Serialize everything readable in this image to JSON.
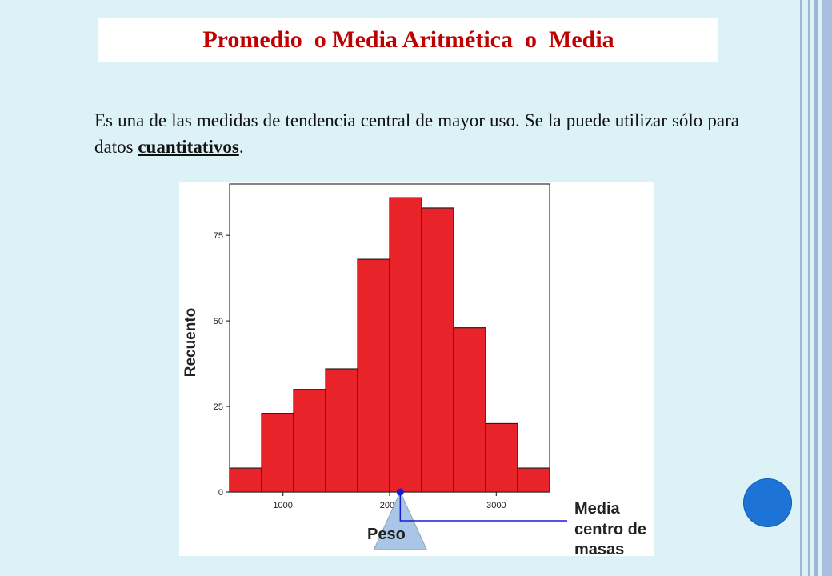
{
  "slide": {
    "title": "Promedio  o Media Aritmética  o  Media",
    "body_text_before": "Es una de las medidas de tendencia central de mayor uso. Se la puede utilizar sólo para datos ",
    "body_text_emphasis": "cuantitativos",
    "body_text_after": "."
  },
  "colors": {
    "title": "#c00000",
    "background": "#dcf2f7",
    "bar_fill": "#e8232a",
    "mean_marker": "#1a1ad4",
    "triangle": "#a9c5e8",
    "nav_circle": "#1e73d6"
  },
  "chart_data": {
    "type": "bar",
    "subtype": "histogram",
    "xlabel": "Peso",
    "ylabel": "Recuento",
    "bin_starts": [
      500,
      800,
      1100,
      1400,
      1700,
      2000,
      2300,
      2600,
      2900,
      3200
    ],
    "bin_width": 300,
    "values": [
      7,
      23,
      30,
      36,
      68,
      86,
      83,
      48,
      20,
      7
    ],
    "xlim": [
      500,
      3500
    ],
    "ylim": [
      0,
      90
    ],
    "xticks": [
      1000,
      2000,
      3000
    ],
    "yticks": [
      0,
      25,
      50,
      75
    ],
    "grid": false,
    "mean_marker_x": 2100,
    "annotation": {
      "line1": "Media",
      "line2": "centro de",
      "line3": "masas"
    }
  }
}
